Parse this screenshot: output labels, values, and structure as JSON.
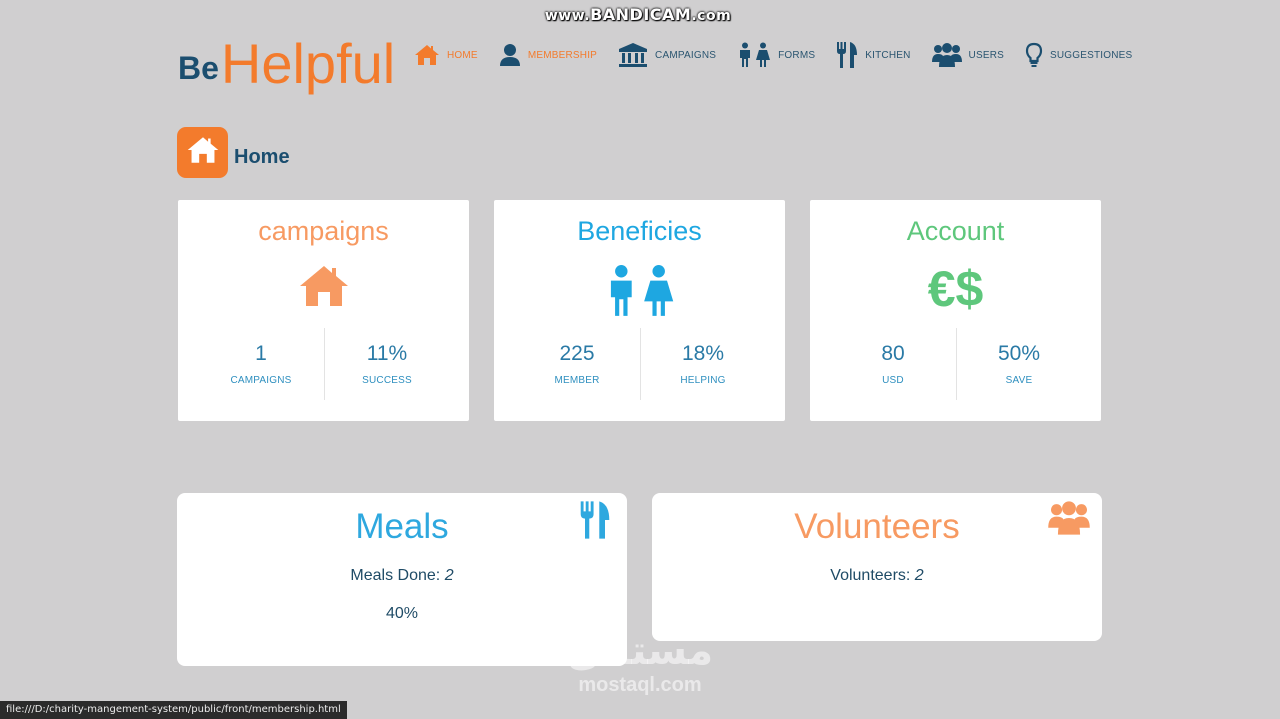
{
  "watermark": {
    "prefix": "www.",
    "brand": "BANDICAM",
    "suffix": ".com"
  },
  "logo": {
    "be": "Be",
    "helpful": "Helpful"
  },
  "nav": [
    {
      "label": "HOME",
      "icon": "home-icon"
    },
    {
      "label": "MEMBERSHIP",
      "icon": "user-icon"
    },
    {
      "label": "CAMPAIGNS",
      "icon": "bank-icon"
    },
    {
      "label": "FORMS",
      "icon": "male-female-icon"
    },
    {
      "label": "KITCHEN",
      "icon": "cutlery-icon"
    },
    {
      "label": "USERS",
      "icon": "users-icon"
    },
    {
      "label": "SUGGESTIONES",
      "icon": "lightbulb-icon"
    }
  ],
  "page": {
    "title": "Home",
    "icon": "home-icon"
  },
  "cards": [
    {
      "title": "campaigns",
      "icon": "home-icon",
      "color": "#f79a62",
      "stats": [
        {
          "value": "1",
          "caption": "CAMPAIGNS"
        },
        {
          "value": "11%",
          "caption": "SUCCESS"
        }
      ]
    },
    {
      "title": "Beneficies",
      "icon": "male-female-icon",
      "color": "#1ea7e1",
      "stats": [
        {
          "value": "225",
          "caption": "MEMBER"
        },
        {
          "value": "18%",
          "caption": "HELPING"
        }
      ]
    },
    {
      "title": "Account",
      "icon": "currency-icon",
      "color": "#5ec77c",
      "icon_text": "€$",
      "stats": [
        {
          "value": "80",
          "caption": "USD"
        },
        {
          "value": "50%",
          "caption": "SAVE"
        }
      ]
    }
  ],
  "meals": {
    "title": "Meals",
    "color": "#2ea8df",
    "done_label": "Meals Done:",
    "done_value": "2",
    "percent": "40%",
    "icon": "cutlery-icon"
  },
  "volunteers": {
    "title": "Volunteers",
    "color": "#f79a62",
    "label": "Volunteers:",
    "value": "2",
    "icon": "users-icon"
  },
  "status_bar": "file:///D:/charity-mangement-system/public/front/membership.html",
  "watermark_bottom": {
    "arabic": "مستقل",
    "latin": "mostaql.com"
  },
  "colors": {
    "accent": "#f37b2c",
    "navy": "#1b4e6f",
    "background": "#d0cfd0"
  }
}
